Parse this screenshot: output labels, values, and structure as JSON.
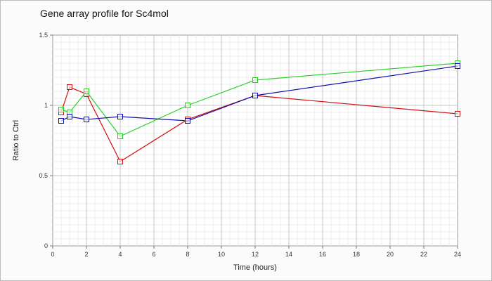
{
  "chart_data": {
    "type": "line",
    "title": "Gene array profile for Sc4mol",
    "xlabel": "Time (hours)",
    "ylabel": "Ratio to Ctrl",
    "xlim": [
      0,
      24
    ],
    "ylim": [
      0,
      1.5
    ],
    "x_ticks": [
      "0",
      "2",
      "4",
      "6",
      "8",
      "10",
      "12",
      "14",
      "16",
      "18",
      "20",
      "22",
      "24"
    ],
    "y_ticks": [
      "0",
      "0.5",
      "1",
      "1.5"
    ],
    "grid": true,
    "legend": "none",
    "marker": "open-square",
    "series": [
      {
        "color": "#d01010",
        "points": [
          [
            0.5,
            0.95
          ],
          [
            1,
            1.13
          ],
          [
            2,
            1.08
          ],
          [
            4,
            0.6
          ],
          [
            8,
            0.9
          ],
          [
            12,
            1.07
          ],
          [
            24,
            0.94
          ]
        ]
      },
      {
        "color": "#2ad02a",
        "points": [
          [
            0.5,
            0.97
          ],
          [
            1,
            0.95
          ],
          [
            2,
            1.1
          ],
          [
            4,
            0.78
          ],
          [
            8,
            1.0
          ],
          [
            12,
            1.18
          ],
          [
            24,
            1.3
          ]
        ]
      },
      {
        "color": "#1010b0",
        "points": [
          [
            0.5,
            0.89
          ],
          [
            1,
            0.92
          ],
          [
            2,
            0.9
          ],
          [
            4,
            0.92
          ],
          [
            8,
            0.89
          ],
          [
            12,
            1.07
          ],
          [
            24,
            1.28
          ]
        ]
      }
    ]
  }
}
